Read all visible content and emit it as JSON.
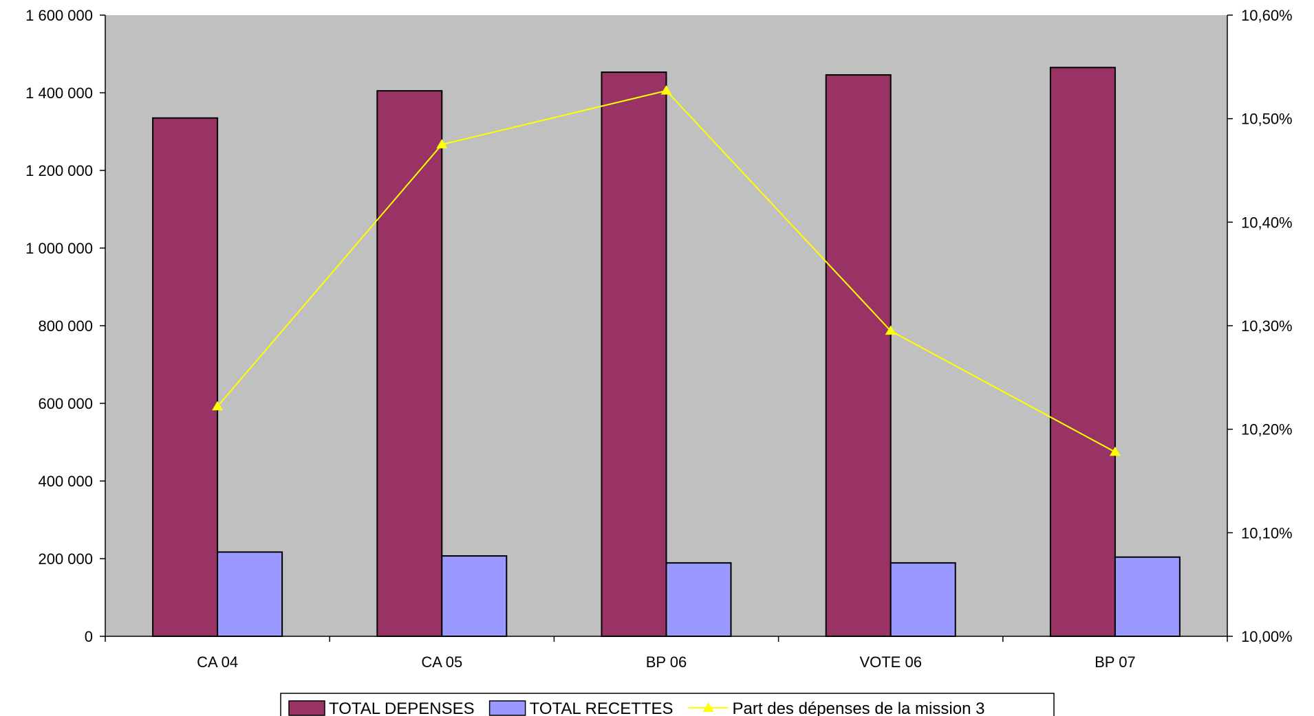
{
  "chart_data": {
    "type": "bar",
    "categories": [
      "CA 04",
      "CA 05",
      "BP 06",
      "VOTE 06",
      "BP 07"
    ],
    "series": [
      {
        "name": "TOTAL DEPENSES",
        "type": "bar",
        "axis": "left",
        "color": "#993366",
        "values": [
          1335000,
          1405000,
          1453000,
          1446000,
          1465000
        ]
      },
      {
        "name": "TOTAL RECETTES",
        "type": "bar",
        "axis": "left",
        "color": "#9999FF",
        "values": [
          217000,
          207000,
          189000,
          189000,
          204000
        ]
      },
      {
        "name": "Part des dépenses de la mission 3",
        "type": "line",
        "axis": "right",
        "color": "#FFFF00",
        "marker": "triangle",
        "values": [
          10.222,
          10.475,
          10.527,
          10.295,
          10.178
        ]
      }
    ],
    "y_left": {
      "range": [
        0,
        1600000
      ],
      "ticks": [
        "0",
        "200 000",
        "400 000",
        "600 000",
        "800 000",
        "1 000 000",
        "1 200 000",
        "1 400 000",
        "1 600 000"
      ]
    },
    "y_right": {
      "range": [
        10.0,
        10.6
      ],
      "ticks": [
        "10,00%",
        "10,10%",
        "10,20%",
        "10,30%",
        "10,40%",
        "10,50%",
        "10,60%"
      ]
    },
    "plot_background": "#C0C0C0",
    "grid": false,
    "legend_position": "bottom"
  }
}
